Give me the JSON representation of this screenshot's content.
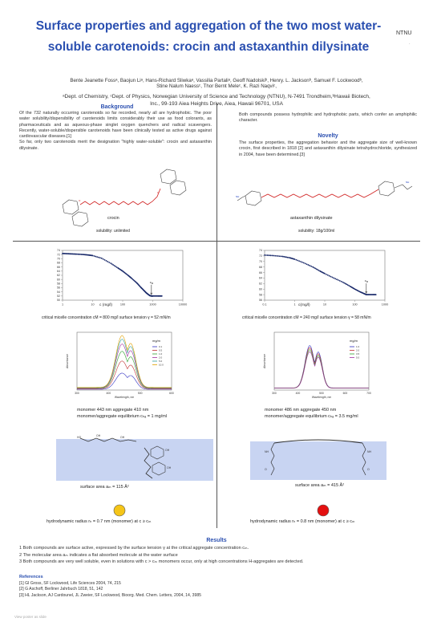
{
  "header": {
    "title_line1": "Surface properties and aggregation of the two most water-",
    "title_line2": "soluble carotenoids: crocin and astaxanthin dilysinate",
    "logo_text": "NTNU",
    "logo_sub": "·",
    "authors": "Bente Jeanette Fossᵃ, Baojun Liᵃ, Hans-Richard Sliwkaᵃ, Vassilia Partaliᵃ, Geoff Nadolskiᵇ, Henry. L. Jacksonᵇ, Samuel F. Lockwoodᵇ,",
    "authors_line2": "Stine Nalum Naessᶜ, Thor Bernt Meleᶜ, K. Razi Naqviᶜ,",
    "affiliation_line1": "ᵃDept. of Chemistry, ᶜDept. of Physics, Norwegian University of Science and Technology (NTNU), N-7491 Trondheim,ᵇHawaii Biotech,",
    "affiliation_line2": "Inc., 99-193 Aiea Heights Drive, Aiea, Hawaii 96701, USA"
  },
  "background": {
    "heading": "Background",
    "text": "Of the 732 naturally occurring carotenoids so far recorded, nearly all are hydrophobic. The poor water solubility/dispersibility of carotenoids limits considerably their use as food colorants, as pharmaceuticals and as aqueous-phase singlet oxygen quenchers and radical scavengers. Recently, water-soluble/dispersible carotenoids have been clinically tested as active drugs against cardiovascular diseases.[1]",
    "text2": "So far, only two carotenoids merit the designation \"highly water-soluble\": crocin and astaxanthin dilysinate."
  },
  "right_intro": {
    "text": "Both compounds possess hydrophilic and hydrophobic parts, which confer an amphiphilic character."
  },
  "novelty": {
    "heading": "Novelty",
    "text": "The surface properties, the aggregation behavior and the aggregate size of well-known crocin, first described in 1818 [2] and astaxanthin dilysinate tetrahydrochloride, synthesized in 2004, have been determined.[3]"
  },
  "crocin": {
    "name": "crocin",
    "solubility": "solubility: unlimited",
    "xlabel": "c (mg/l)",
    "cm_label": "c",
    "cm_sub": "M",
    "caption": "critical micelle concentration cM = 800 mg/l   surface tension γ = 52 mN/m",
    "uv_legend_title": "mg/m",
    "uv_ylabel": "Absorbance",
    "uv_xlabel": "Wavelength, nm",
    "uv_caption1": "monomer 443 nm     aggregate 410 nm",
    "uv_caption2": "monomer/aggregate equilibrium cₕₐ = 1 mg/ml",
    "area_caption": "surface area aₘ = 115 Å²",
    "radius_caption": "hydrodynamic radius rₕ = 0.7 nm (monomer) at c ≥ cₘ",
    "dot_color": "#f5c518"
  },
  "astaxanthin": {
    "name": "astaxanthin dilysinate",
    "solubility": "solubility: 18g/100ml",
    "xlabel": "c(mg/l)",
    "cm_label": "c",
    "cm_sub": "M",
    "caption": "critical micelle concentration cM = 240 mg/l   surface tension γ = 58 mN/m",
    "uv_legend_title": "mg/m",
    "uv_ylabel": "Absorbance",
    "uv_xlabel": "Wavelength, nm",
    "uv_caption1": "monomer 486 nm     aggregate 450 nm",
    "uv_caption2": "monomer/aggregate equilibrium cₕₐ = 3.5 mg/ml",
    "area_caption": "surface area aₘ = 415 Å²",
    "radius_caption": "hydrodynamic radius rₕ = 0.8 nm (monomer) at c ≥ cₘ",
    "dot_color": "#e41010"
  },
  "results": {
    "heading": "Results",
    "items": [
      "1 Both compounds are surface active, expressed by the surface tension γ at the critical aggregate concentration cₘ.",
      "2 The molecular area aₘ indicates a flat absorbed molecule at the water surface",
      "3 Both compounds are very well soluble, even in solutions with c > cₘ monomers occur, only at high concentrations H-aggregates are detected."
    ]
  },
  "references": {
    "heading": "References",
    "items": [
      "[1] GI Gross, SF Lockwood, Life Sciences 2004, 74, 215",
      "[2] G Aschoff, Berliner Jahrbuch 1818, 51, 142",
      "[3] HL Jackson, AJ Cardounel, JL Zweier, SF Lockwood, Bioorg. Med. Chem. Letters, 2004, 14, 3985"
    ]
  },
  "footer": "View poster as slide",
  "chart_data": [
    {
      "type": "scatter",
      "title": "",
      "xlabel": "c (mg/l)",
      "ylabel": "",
      "x_scale": "log",
      "xlim": [
        1,
        10000
      ],
      "ylim": [
        50,
        74
      ],
      "x_ticks": [
        "1",
        "10",
        "100",
        "1000",
        "10000"
      ],
      "y_ticks": [
        "50",
        "52",
        "54",
        "56",
        "58",
        "60",
        "62",
        "64",
        "66",
        "68",
        "70",
        "72",
        "74"
      ],
      "x": [
        1,
        1.5,
        2,
        3,
        5,
        7,
        10,
        20,
        40,
        70,
        100,
        150,
        200,
        300,
        400,
        500,
        600,
        700,
        800,
        900,
        1000,
        1500,
        2000
      ],
      "y": [
        72.5,
        72.4,
        72.3,
        72.2,
        72.0,
        71.8,
        71.5,
        70.2,
        67.8,
        65.5,
        64.0,
        62.0,
        60.5,
        58.2,
        56.2,
        54.8,
        53.6,
        52.8,
        52.2,
        52.0,
        52.0,
        52.0,
        52.0
      ],
      "annotation": "cM"
    },
    {
      "type": "scatter",
      "title": "",
      "xlabel": "c(mg/l)",
      "ylabel": "",
      "x_scale": "log",
      "xlim": [
        0.1,
        1000
      ],
      "ylim": [
        56,
        74
      ],
      "x_ticks": [
        "0.1",
        "1",
        "10",
        "100",
        "1000"
      ],
      "y_ticks": [
        "56",
        "58",
        "60",
        "62",
        "64",
        "66",
        "68",
        "70",
        "72",
        "74"
      ],
      "x": [
        0.1,
        0.2,
        0.4,
        0.7,
        1,
        2,
        4,
        7,
        10,
        20,
        40,
        70,
        100,
        150,
        200,
        240,
        300,
        400,
        500
      ],
      "y": [
        72.3,
        72.1,
        71.8,
        71.3,
        70.8,
        69.5,
        68.0,
        66.5,
        65.6,
        64.0,
        62.5,
        61.0,
        60.0,
        59.0,
        58.4,
        58.0,
        58.0,
        58.0,
        58.0
      ],
      "annotation": "cM"
    },
    {
      "type": "line",
      "title": "",
      "xlabel": "Wavelength, nm",
      "ylabel": "Absorbance",
      "xlim": [
        300,
        600
      ],
      "ylim": [
        0,
        2.5
      ],
      "x_ticks": [
        "300",
        "400",
        "500",
        "600"
      ],
      "legend": "top-right",
      "series": [
        {
          "name": "0.1",
          "peak": 0.7,
          "color": "#3030c0"
        },
        {
          "name": "0.5",
          "peak": 1.2,
          "color": "#c03030"
        },
        {
          "name": "1.0",
          "peak": 1.6,
          "color": "#30a030"
        },
        {
          "name": "2.0",
          "peak": 1.9,
          "color": "#a030a0"
        },
        {
          "name": "5.0",
          "peak": 2.1,
          "color": "#30a0a0"
        },
        {
          "name": "10.0",
          "peak": 2.25,
          "color": "#e0a000"
        }
      ],
      "peaks_nm": [
        443,
        470
      ]
    },
    {
      "type": "line",
      "title": "",
      "xlabel": "Wavelength, nm",
      "ylabel": "Absorbance",
      "xlim": [
        300,
        700
      ],
      "ylim": [
        0,
        0.3
      ],
      "x_ticks": [
        "300",
        "400",
        "500",
        "600",
        "700"
      ],
      "legend": "top-right",
      "series": [
        {
          "name": "1.0",
          "peak": 0.22,
          "color": "#3030c0"
        },
        {
          "name": "2.0",
          "peak": 0.21,
          "color": "#c03030"
        },
        {
          "name": "3.5",
          "peak": 0.2,
          "color": "#30a030"
        },
        {
          "name": "5.0",
          "peak": 0.19,
          "color": "#a030a0"
        }
      ],
      "peaks_nm": [
        450,
        486
      ]
    }
  ]
}
